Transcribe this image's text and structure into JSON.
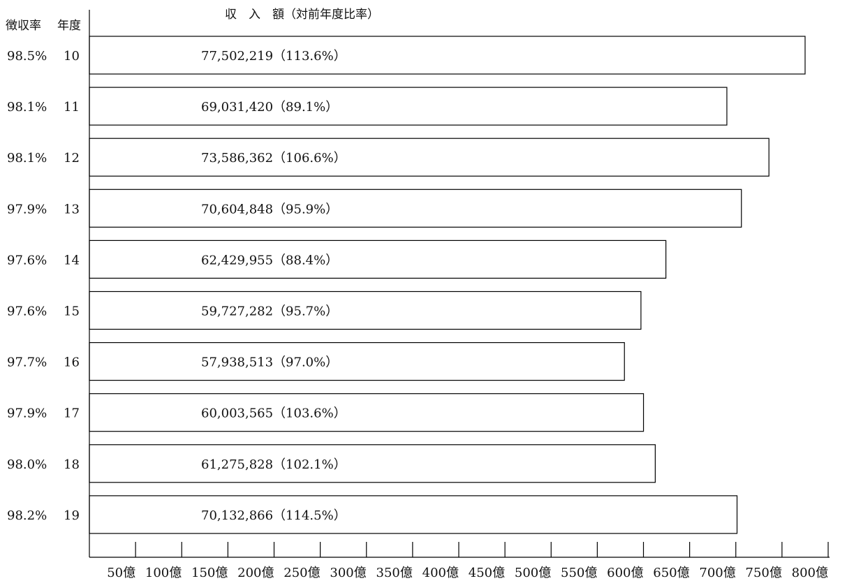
{
  "chart_data": {
    "type": "bar",
    "orientation": "horizontal",
    "title": "収　入　額（対前年度比率）",
    "row_header_rate": "徴収率",
    "row_header_year": "年度",
    "categories": [
      "10",
      "11",
      "12",
      "13",
      "14",
      "15",
      "16",
      "17",
      "18",
      "19"
    ],
    "collection_rates": [
      "98.5%",
      "98.1%",
      "98.1%",
      "97.9%",
      "97.6%",
      "97.6%",
      "97.7%",
      "97.9%",
      "98.0%",
      "98.2%"
    ],
    "values": [
      77502219,
      69031420,
      73586362,
      70604848,
      62429955,
      59727282,
      57938513,
      60003565,
      61275828,
      70132866
    ],
    "bar_labels": [
      "77,502,219（113.6%）",
      "69,031,420（89.1%）",
      "73,586,362（106.6%）",
      "70,604,848（95.9%）",
      "62,429,955（88.4%）",
      "59,727,282（95.7%）",
      "57,938,513（97.0%）",
      "60,003,565（103.6%）",
      "61,275,828（102.1%）",
      "70,132,866（114.5%）"
    ],
    "xlim": [
      0,
      800
    ],
    "x_unit_scale": 100000,
    "x_ticks": [
      50,
      100,
      150,
      200,
      250,
      300,
      350,
      400,
      450,
      500,
      550,
      600,
      650,
      700,
      750,
      800
    ],
    "x_tick_labels": [
      "50億",
      "100億",
      "150億",
      "200億",
      "250億",
      "300億",
      "350億",
      "400億",
      "450億",
      "500億",
      "550億",
      "600億",
      "650億",
      "700億",
      "750億",
      "800億"
    ],
    "grid": false,
    "colors": {
      "bar_fill": "#ffffff",
      "bar_stroke": "#000000",
      "axis": "#000000"
    }
  }
}
